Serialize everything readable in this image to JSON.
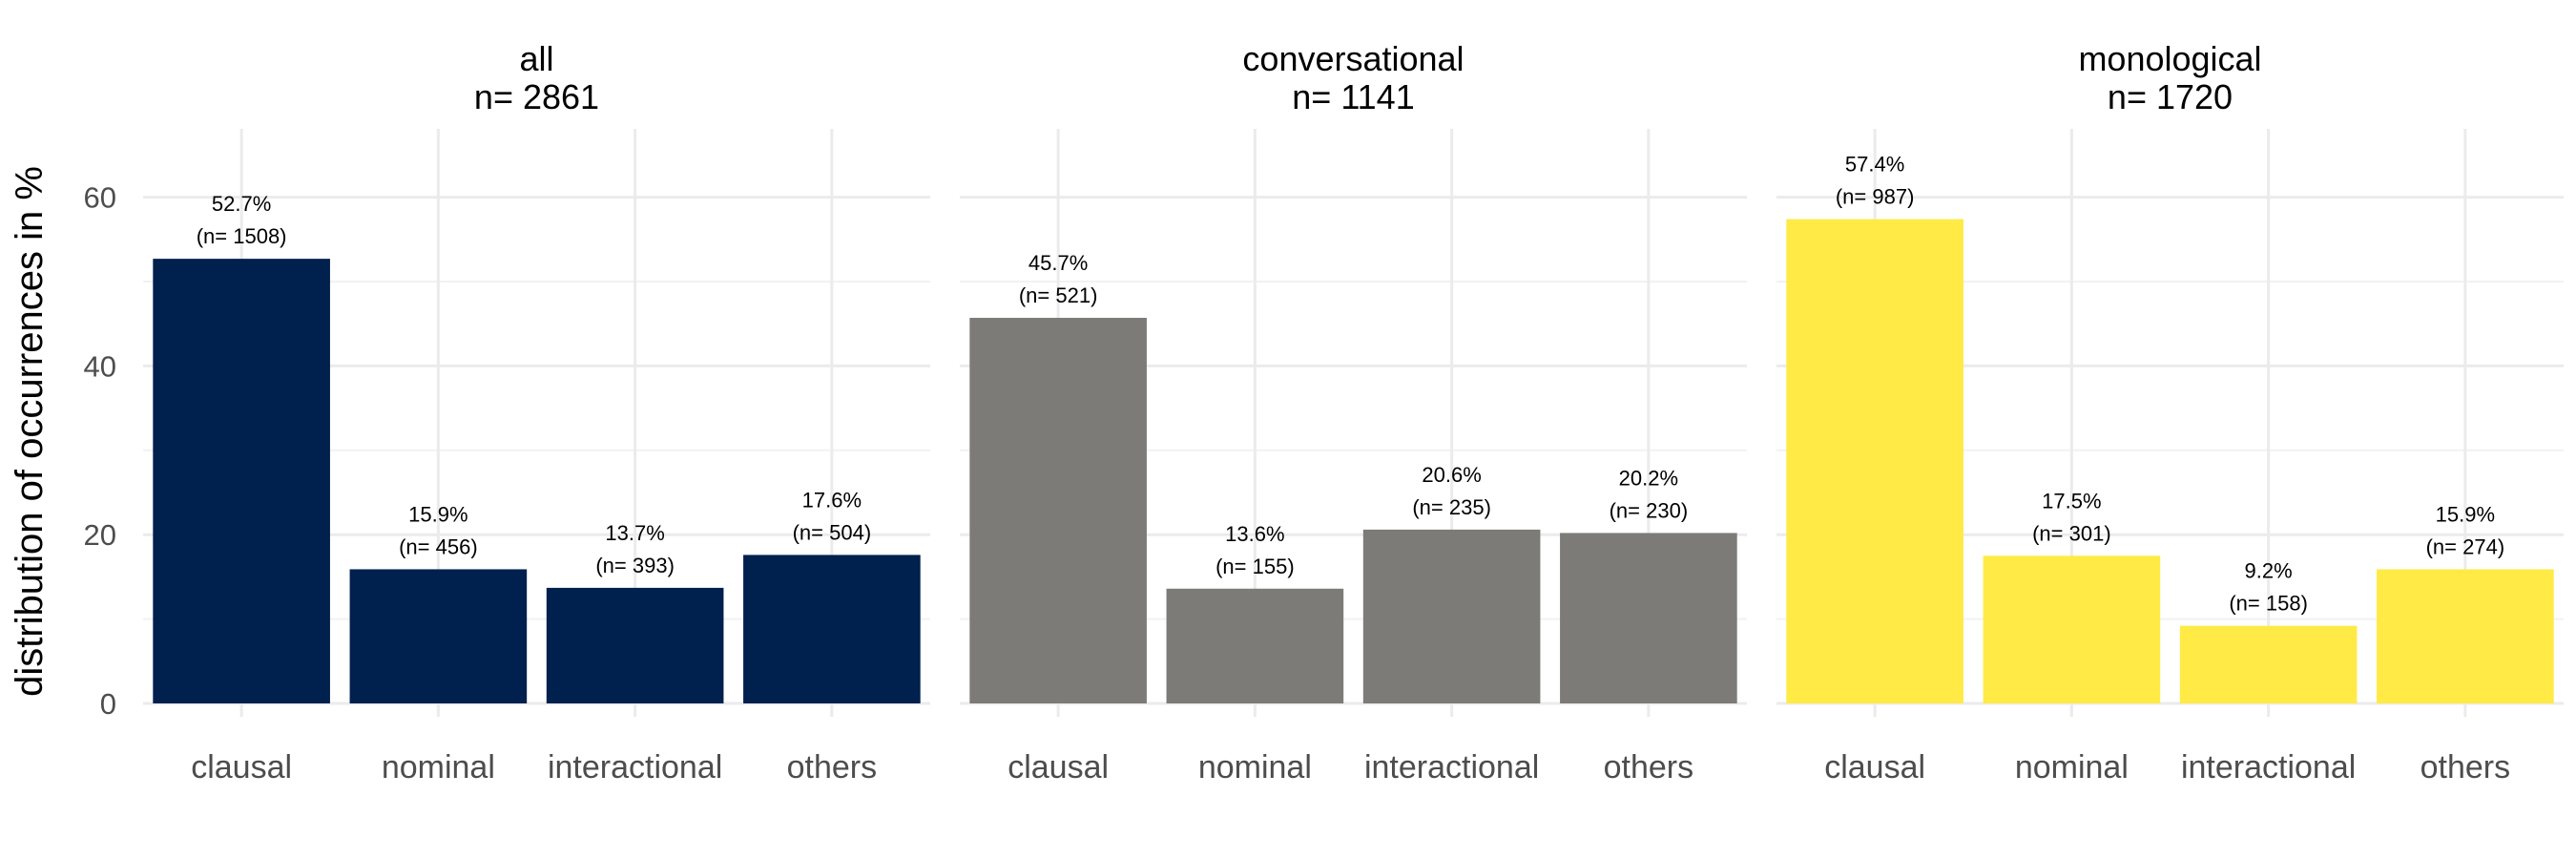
{
  "chart_data": {
    "type": "bar",
    "ylabel": "distribution of occurrences in %",
    "xlabel": "",
    "ylim": [
      0,
      68
    ],
    "yticks": [
      0,
      20,
      40,
      60
    ],
    "grid": true,
    "categories": [
      "clausal",
      "nominal",
      "interactional",
      "others"
    ],
    "panels": [
      {
        "title": "all",
        "subtitle": "n=  2861",
        "color": "#00204D",
        "values": [
          52.7,
          15.9,
          13.7,
          17.6
        ],
        "labels": [
          "52.7%",
          "15.9%",
          "13.7%",
          "17.6%"
        ],
        "counts": [
          "(n= 1508)",
          "(n= 456)",
          "(n= 393)",
          "(n= 504)"
        ]
      },
      {
        "title": "conversational",
        "subtitle": "n=  1141",
        "color": "#7C7B78",
        "values": [
          45.7,
          13.6,
          20.6,
          20.2
        ],
        "labels": [
          "45.7%",
          "13.6%",
          "20.6%",
          "20.2%"
        ],
        "counts": [
          "(n= 521)",
          "(n= 155)",
          "(n= 235)",
          "(n= 230)"
        ]
      },
      {
        "title": "monological",
        "subtitle": "n=  1720",
        "color": "#FFEA46",
        "values": [
          57.4,
          17.5,
          9.2,
          15.9
        ],
        "labels": [
          "57.4%",
          "17.5%",
          "9.2%",
          "15.9%"
        ],
        "counts": [
          "(n= 987)",
          "(n= 301)",
          "(n= 158)",
          "(n= 274)"
        ]
      }
    ]
  }
}
